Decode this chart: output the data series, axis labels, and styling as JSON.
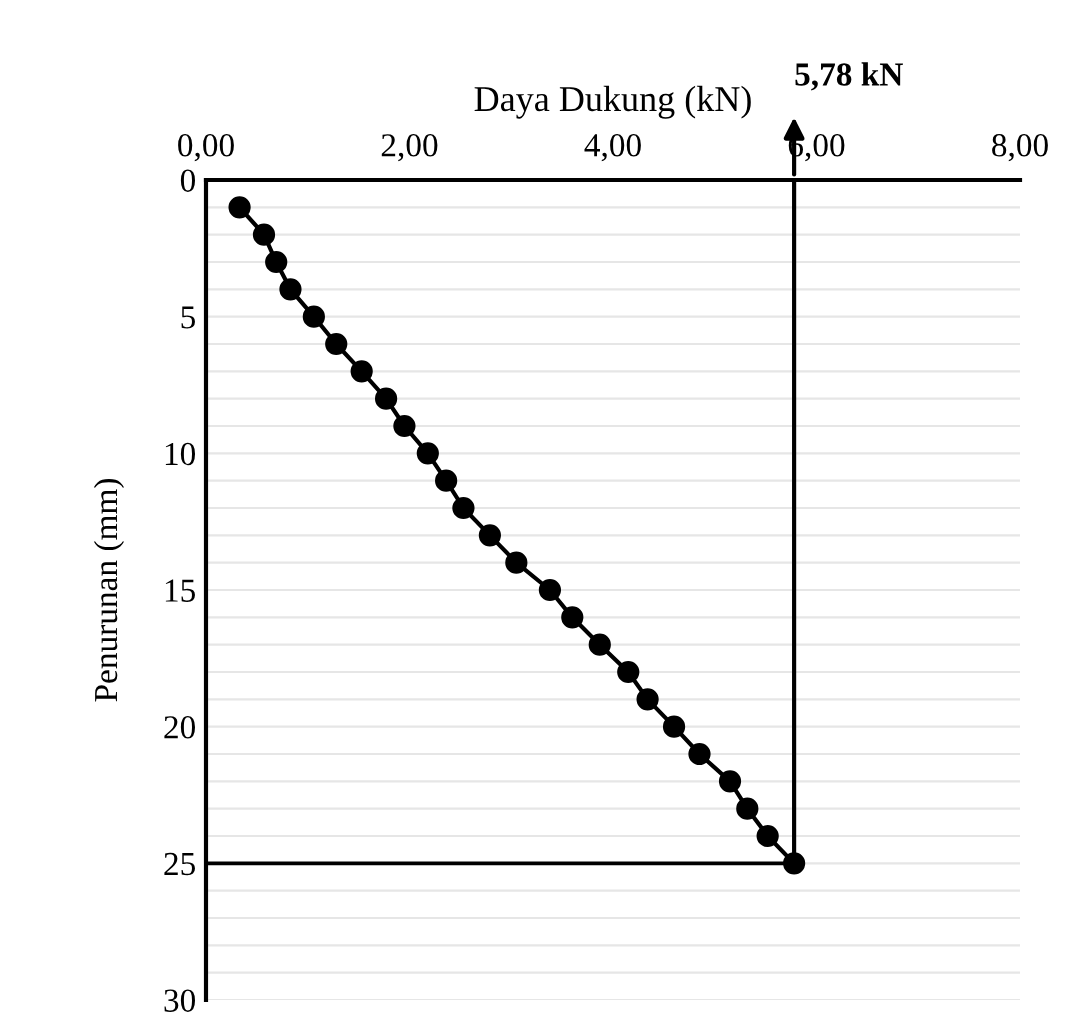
{
  "chart_data": {
    "type": "line",
    "xlabel": "Daya Dukung (kN)",
    "ylabel": "Penurunan (mm)",
    "series": [
      {
        "color": "#000000",
        "x": [
          0.33,
          0.57,
          0.69,
          0.83,
          1.06,
          1.28,
          1.53,
          1.77,
          1.95,
          2.18,
          2.36,
          2.53,
          2.79,
          3.05,
          3.38,
          3.6,
          3.87,
          4.15,
          4.34,
          4.6,
          4.85,
          5.15,
          5.32,
          5.52,
          5.78
        ],
        "values": [
          1,
          2,
          3,
          4,
          5,
          6,
          7,
          8,
          9,
          10,
          11,
          12,
          13,
          14,
          15,
          16,
          17,
          18,
          19,
          20,
          21,
          22,
          23,
          24,
          25
        ]
      }
    ],
    "marker": "circle",
    "line_style": "solid",
    "xlim": [
      0,
      8
    ],
    "xticks": [
      {
        "value": 0,
        "label": "0,00"
      },
      {
        "value": 2,
        "label": "2,00"
      },
      {
        "value": 4,
        "label": "4,00"
      },
      {
        "value": 6,
        "label": "6,00"
      },
      {
        "value": 8,
        "label": "8,00"
      }
    ],
    "ylim": [
      30,
      0
    ],
    "yticks": [
      0,
      {
        "value": 1,
        "label": null
      },
      {
        "value": 2,
        "label": null
      },
      {
        "value": 3,
        "label": null
      },
      {
        "value": 4,
        "label": null
      },
      5,
      {
        "value": 6,
        "label": null
      },
      {
        "value": 7,
        "label": null
      },
      {
        "value": 8,
        "label": null
      },
      {
        "value": 9,
        "label": null
      },
      10,
      {
        "value": 11,
        "label": null
      },
      {
        "value": 12,
        "label": null
      },
      {
        "value": 13,
        "label": null
      },
      {
        "value": 14,
        "label": null
      },
      15,
      {
        "value": 16,
        "label": null
      },
      {
        "value": 17,
        "label": null
      },
      {
        "value": 18,
        "label": null
      },
      {
        "value": 19,
        "label": null
      },
      20,
      {
        "value": 21,
        "label": null
      },
      {
        "value": 22,
        "label": null
      },
      {
        "value": 23,
        "label": null
      },
      {
        "value": 24,
        "label": null
      },
      25,
      {
        "value": 26,
        "label": null
      },
      {
        "value": 27,
        "label": null
      },
      {
        "value": 28,
        "label": null
      },
      {
        "value": 29,
        "label": null
      },
      30
    ],
    "grid": "y",
    "ref_lines": [
      {
        "axis": "x",
        "value": 5.78,
        "label": "5,78 kN",
        "color": "#000000"
      },
      {
        "axis": "y",
        "value": 25,
        "label": null,
        "color": "#000000"
      }
    ]
  }
}
